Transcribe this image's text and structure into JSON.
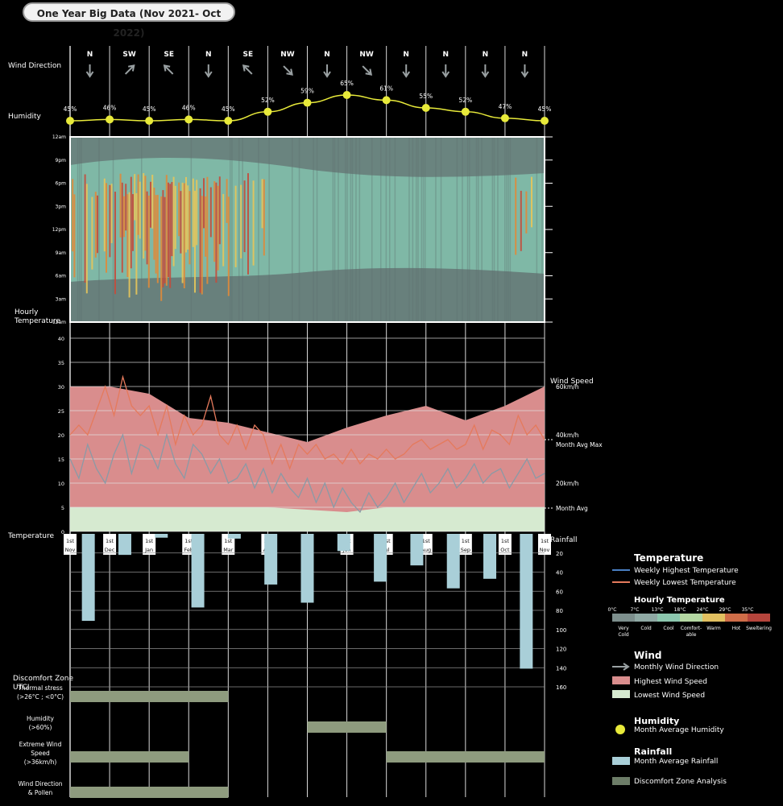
{
  "title": "One Year Big Data (Nov 2021- Oct 2022)",
  "row_labels": {
    "wind_direction": "Wind Direction",
    "humidity": "Humidity",
    "hourly_temperature": [
      "Hourly",
      "Temperature"
    ],
    "temperature": "Temperature",
    "wind_speed": "Wind Speed",
    "rainfall": "Rainfall",
    "discomfort_zone": [
      "Discomfort Zone",
      "UTCI"
    ]
  },
  "chart_data": {
    "type": "multi-panel climate chart",
    "months": [
      "1st Nov",
      "1st Dec",
      "1st Jan",
      "1st Feb",
      "1st Mar",
      "1st Apr",
      "1st May",
      "1st Jun",
      "1st Jul",
      "1st Aug",
      "1st Sep",
      "1st Oct",
      "1st Nov"
    ],
    "wind_direction": [
      "N",
      "SW",
      "SE",
      "N",
      "SE",
      "NW",
      "N",
      "NW",
      "N",
      "N",
      "N",
      "N"
    ],
    "humidity_pct": [
      45,
      46,
      45,
      46,
      45,
      52,
      59,
      65,
      61,
      55,
      52,
      47,
      45
    ],
    "humidity_labels": [
      "45%",
      "46%",
      "45%",
      "46%",
      "45%",
      "52%",
      "59%",
      "65%",
      "61%",
      "55%",
      "52%",
      "47%",
      "45%"
    ],
    "hourly_y_ticks": [
      "12am",
      "9pm",
      "6pm",
      "3pm",
      "12pm",
      "9am",
      "6am",
      "3am",
      "12am"
    ],
    "hourly_temperature_bands": {
      "very_cold_night": "#667a78",
      "cold_day": "#79c2b0",
      "hot_marks": [
        "#e8c55a",
        "#e08a3a",
        "#c44b3c"
      ]
    },
    "temperature_y_ticks": [
      40,
      35,
      30,
      25,
      20,
      15,
      10,
      5,
      0
    ],
    "temperature_ylim": [
      0,
      40
    ],
    "weekly_highest_temperature": [
      20,
      22,
      20,
      25,
      30,
      24,
      32,
      26,
      24,
      26,
      20,
      26,
      18,
      24,
      20,
      22,
      28,
      20,
      18,
      22,
      17,
      22,
      20,
      14,
      18,
      13,
      18,
      16,
      18,
      15,
      16,
      14,
      17,
      14,
      16,
      15,
      17,
      15,
      16,
      18,
      19,
      17,
      18,
      19,
      17,
      18,
      22,
      17,
      21,
      20,
      18,
      24,
      20,
      22,
      19
    ],
    "weekly_lowest_temperature": [
      15,
      11,
      18,
      13,
      10,
      16,
      20,
      12,
      18,
      17,
      13,
      20,
      14,
      11,
      18,
      16,
      12,
      15,
      10,
      11,
      14,
      9,
      13,
      8,
      12,
      9,
      7,
      11,
      6,
      10,
      5,
      9,
      6,
      4,
      8,
      5,
      7,
      10,
      6,
      9,
      12,
      8,
      10,
      13,
      9,
      11,
      14,
      10,
      12,
      13,
      9,
      12,
      15,
      11,
      12
    ],
    "wind_speed_axis": {
      "labels": [
        "60km/h",
        "40km/h",
        "20km/h"
      ],
      "values": [
        60,
        40,
        20
      ]
    },
    "monthly_max_wind_speed_kmh": [
      60,
      60,
      57,
      47,
      45,
      41,
      37,
      43,
      48,
      52,
      46,
      52,
      60
    ],
    "monthly_min_wind_speed_kmh": [
      10,
      10,
      10,
      10,
      10,
      10,
      9,
      8,
      10,
      10,
      10,
      10,
      10
    ],
    "month_avg_max_label": "Month Avg Max",
    "month_avg_label": "Month Avg",
    "rainfall_y_ticks": [
      20,
      40,
      60,
      80,
      100,
      120,
      140,
      160
    ],
    "rainfall_mm": [
      91,
      22,
      4,
      77,
      5,
      53,
      72,
      18,
      50,
      33,
      57,
      47,
      141
    ],
    "discomfort_zone": [
      {
        "label": [
          "Thermal stress",
          "(>26°C ; <0°C)"
        ],
        "ranges": [
          [
            0,
            4
          ]
        ]
      },
      {
        "label": [
          "Humidity",
          "(>60%)"
        ],
        "ranges": [
          [
            6,
            8
          ]
        ]
      },
      {
        "label": [
          "Extreme Wind",
          "Speed",
          "(>36km/h)"
        ],
        "ranges": [
          [
            0,
            3
          ],
          [
            8,
            12
          ]
        ]
      },
      {
        "label": [
          "Wind Direction",
          "& Pollen"
        ],
        "ranges": [
          [
            0,
            4
          ]
        ]
      }
    ]
  },
  "legend": {
    "temperature": {
      "title": "Temperature",
      "items": [
        {
          "label": "Weekly Highest Temperature",
          "color": "#4a7fc4"
        },
        {
          "label": "Weekly Lowest Temperature",
          "color": "#e57a5c"
        }
      ]
    },
    "hourly_temperature": {
      "title": "Hourly Temperature",
      "thresholds": [
        "0°C",
        "7°C",
        "13°C",
        "18°C",
        "24°C",
        "29°C",
        "35°C"
      ],
      "bins": [
        {
          "label": [
            "Very",
            "Cold"
          ],
          "color": "#7d8f8d"
        },
        {
          "label": [
            "Cold"
          ],
          "color": "#8fa9a4"
        },
        {
          "label": [
            "Cool"
          ],
          "color": "#8cc7ae"
        },
        {
          "label": [
            "Comfort-",
            "able"
          ],
          "color": "#b4d7a2"
        },
        {
          "label": [
            "Warm"
          ],
          "color": "#e2c060"
        },
        {
          "label": [
            "Hot"
          ],
          "color": "#cf6d48"
        },
        {
          "label": [
            "Sweltering"
          ],
          "color": "#b5453c"
        }
      ]
    },
    "wind": {
      "title": "Wind",
      "items": [
        {
          "label": "Monthly Wind Direction",
          "color": "#9aa1a3"
        },
        {
          "label": "Highest Wind Speed",
          "color": "#d98d8d"
        },
        {
          "label": "Lowest Wind Speed",
          "color": "#d6ead0"
        }
      ]
    },
    "humidity": {
      "title": "Humidity",
      "item": "Month Average Humidity",
      "color": "#e8ea3a"
    },
    "rainfall": {
      "title": "Rainfall",
      "item": "Month Average Rainfall",
      "color": "#a9cfd8"
    },
    "discomfort": {
      "item": "Discomfort Zone Analysis",
      "color": "#6d7d68"
    }
  }
}
